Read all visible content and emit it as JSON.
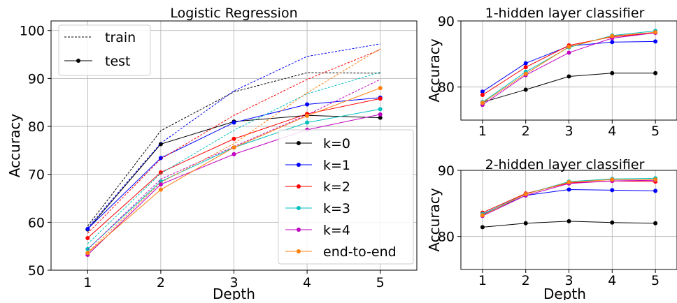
{
  "chart_data": [
    {
      "type": "line",
      "title": "Logistic Regression",
      "xlabel": "Depth",
      "ylabel": "Accuracy",
      "x": [
        1,
        2,
        3,
        4,
        5
      ],
      "xlim": [
        0.5,
        5.5
      ],
      "ylim": [
        50,
        102
      ],
      "yticks": [
        50,
        60,
        70,
        80,
        90,
        100
      ],
      "grid": true,
      "legend_style": {
        "title": "train / test",
        "placement": "top-left",
        "entries": [
          "train",
          "test"
        ]
      },
      "legend_series": {
        "placement": "lower-right",
        "entries": [
          "k=0",
          "k=1",
          "k=2",
          "k=3",
          "k=4",
          "end-to-end"
        ]
      },
      "series": [
        {
          "name": "k=0",
          "color": "#000000",
          "test": [
            58.5,
            76.3,
            81.0,
            82.3,
            81.8
          ],
          "train": [
            59.2,
            79.1,
            87.2,
            91.2,
            91.1
          ]
        },
        {
          "name": "k=1",
          "color": "#0000ff",
          "test": [
            58.6,
            73.4,
            80.8,
            84.6,
            86.0
          ],
          "train": [
            58.8,
            76.5,
            87.4,
            94.6,
            97.2
          ]
        },
        {
          "name": "k=2",
          "color": "#ff0000",
          "test": [
            56.7,
            70.4,
            77.4,
            82.6,
            85.8
          ],
          "train": [
            57.7,
            73.2,
            82.3,
            89.8,
            96.0
          ]
        },
        {
          "name": "k=3",
          "color": "#00bfbf",
          "test": [
            54.4,
            68.5,
            75.6,
            80.8,
            83.6
          ],
          "train": [
            55.5,
            70.2,
            79.2,
            86.8,
            91.3
          ]
        },
        {
          "name": "k=4",
          "color": "#bf00bf",
          "test": [
            53.2,
            67.9,
            74.2,
            79.3,
            82.5
          ],
          "train": [
            54.3,
            69.0,
            75.8,
            82.4,
            89.8
          ]
        },
        {
          "name": "end-to-end",
          "color": "#ff7f0e",
          "test": [
            53.6,
            66.8,
            75.6,
            82.2,
            88.0
          ],
          "train": [
            53.7,
            68.3,
            76.4,
            87.0,
            96.2
          ]
        }
      ]
    },
    {
      "type": "line",
      "title": "1-hidden layer classifier",
      "xlabel": "",
      "ylabel": "Accuracy",
      "x": [
        1,
        2,
        3,
        4,
        5
      ],
      "xlim": [
        0.5,
        5.5
      ],
      "ylim": [
        75,
        90
      ],
      "yticks": [
        80,
        90
      ],
      "grid": true,
      "series": [
        {
          "name": "k=0",
          "color": "#000000",
          "values": [
            77.7,
            79.6,
            81.6,
            82.1,
            82.1
          ]
        },
        {
          "name": "k=1",
          "color": "#0000ff",
          "values": [
            79.3,
            83.6,
            86.2,
            86.8,
            86.9
          ]
        },
        {
          "name": "k=2",
          "color": "#ff0000",
          "values": [
            78.8,
            83.0,
            86.3,
            87.6,
            88.2
          ]
        },
        {
          "name": "k=3",
          "color": "#00bfbf",
          "values": [
            77.7,
            82.3,
            86.0,
            87.8,
            88.5
          ]
        },
        {
          "name": "k=4",
          "color": "#bf00bf",
          "values": [
            77.3,
            81.8,
            85.2,
            87.4,
            88.2
          ]
        },
        {
          "name": "end-to-end",
          "color": "#ff7f0e",
          "values": [
            77.6,
            82.0,
            86.1,
            87.7,
            88.3
          ]
        }
      ]
    },
    {
      "type": "line",
      "title": "2-hidden layer classifier",
      "xlabel": "Depth",
      "ylabel": "Accuracy",
      "x": [
        1,
        2,
        3,
        4,
        5
      ],
      "xlim": [
        0.5,
        5.5
      ],
      "ylim": [
        75,
        90
      ],
      "yticks": [
        80,
        90
      ],
      "grid": true,
      "series": [
        {
          "name": "k=0",
          "color": "#000000",
          "values": [
            81.4,
            82.0,
            82.3,
            82.1,
            82.0
          ]
        },
        {
          "name": "k=1",
          "color": "#0000ff",
          "values": [
            83.3,
            86.2,
            87.1,
            87.0,
            86.9
          ]
        },
        {
          "name": "k=2",
          "color": "#ff0000",
          "values": [
            83.6,
            86.5,
            88.1,
            88.4,
            88.3
          ]
        },
        {
          "name": "k=3",
          "color": "#00bfbf",
          "values": [
            83.4,
            86.4,
            88.3,
            88.7,
            88.8
          ]
        },
        {
          "name": "k=4",
          "color": "#bf00bf",
          "values": [
            83.1,
            86.2,
            88.0,
            88.4,
            88.5
          ]
        },
        {
          "name": "end-to-end",
          "color": "#ff7f0e",
          "values": [
            83.2,
            86.4,
            88.2,
            88.6,
            88.6
          ]
        }
      ]
    }
  ]
}
